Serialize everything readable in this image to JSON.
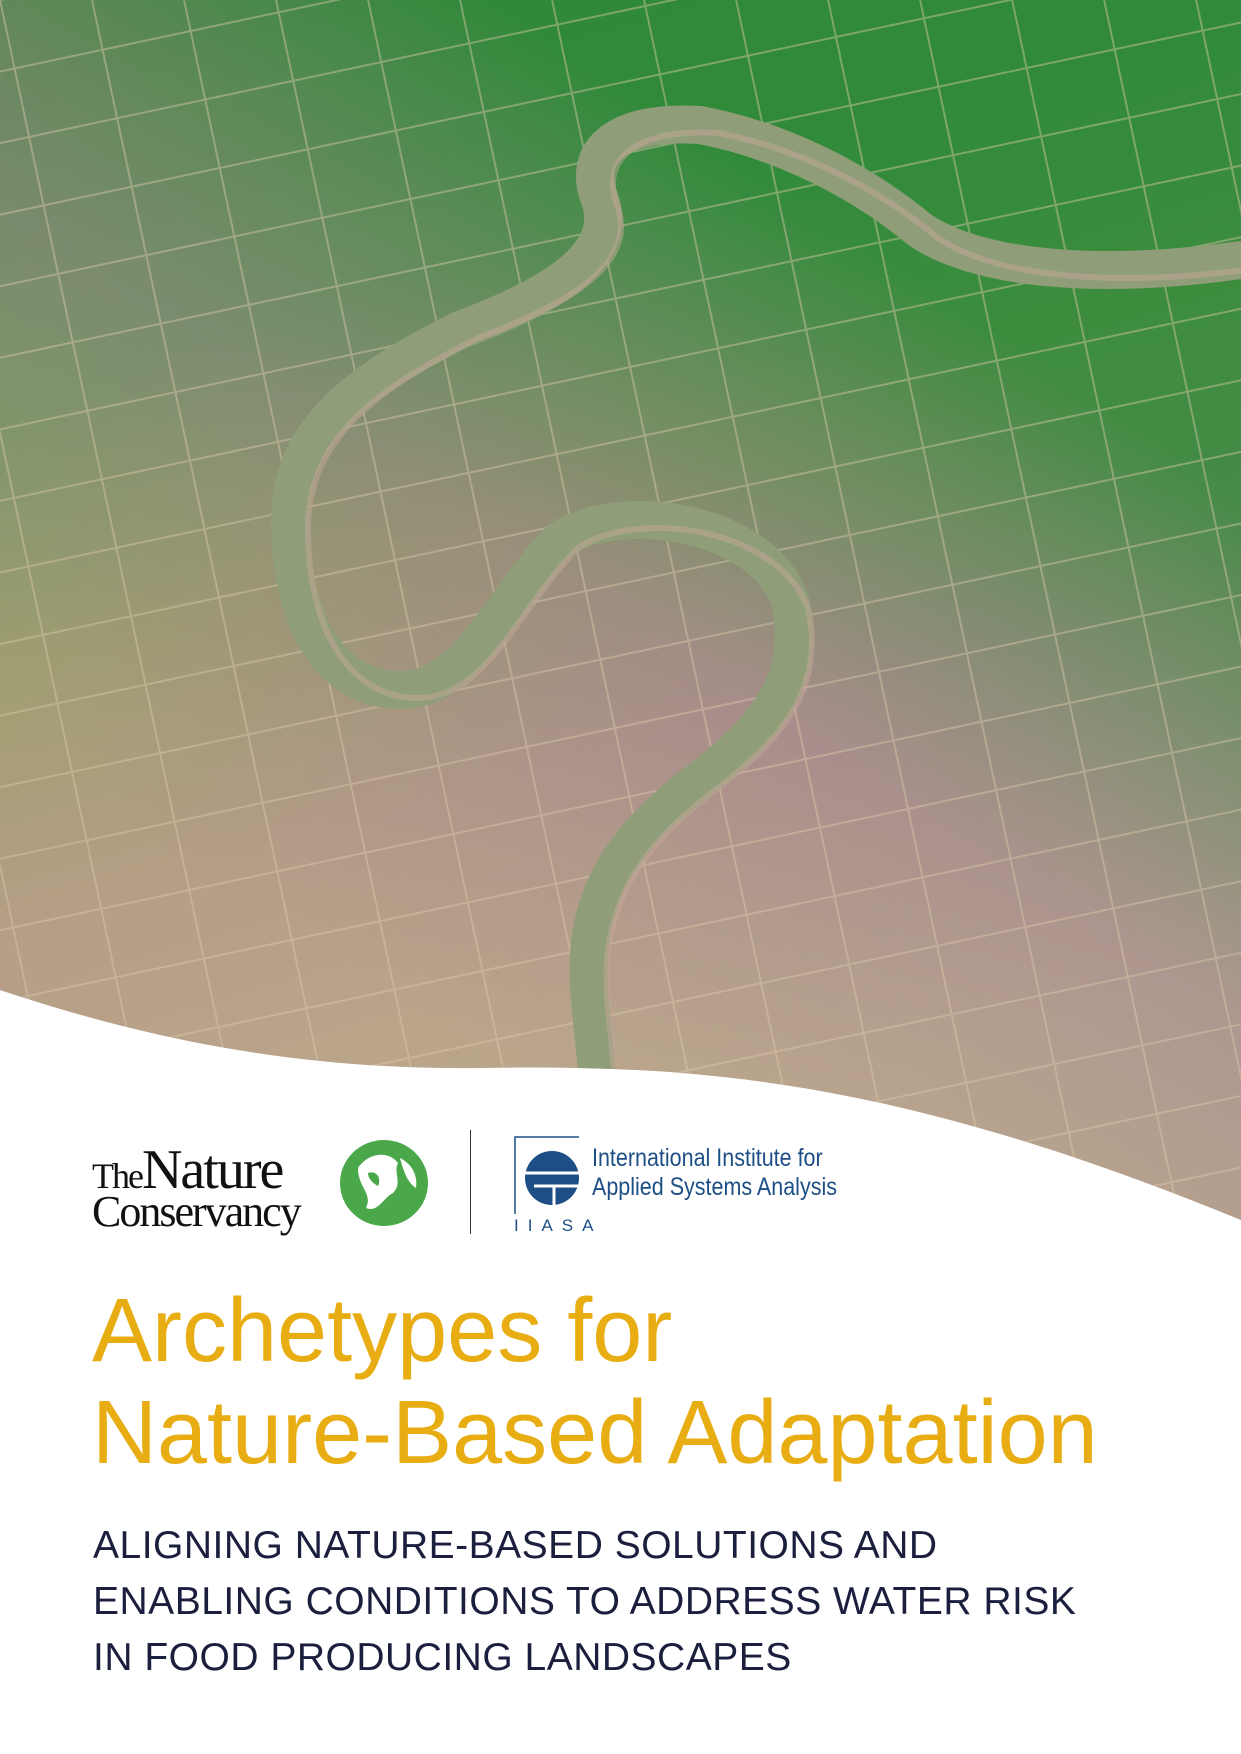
{
  "cover_photo": {
    "description_icon": "aerial-rice-fields-river-photo"
  },
  "logos": {
    "tnc": {
      "the": "The",
      "nature": "Nature",
      "conservancy": "Conservancy",
      "color": "#4aa84a"
    },
    "iiasa": {
      "line1": "International Institute for",
      "line2": "Applied Systems Analysis",
      "abbr": "IIASA",
      "color": "#1d4f86"
    }
  },
  "title": {
    "line1": "Archetypes for",
    "line2": "Nature-Based Adaptation",
    "color": "#e8ad12"
  },
  "subtitle": {
    "line1": "ALIGNING NATURE-BASED SOLUTIONS AND",
    "line2": "ENABLING CONDITIONS TO ADDRESS WATER RISK",
    "line3": "IN FOOD PRODUCING LANDSCAPES",
    "color": "#1b1f3d"
  }
}
